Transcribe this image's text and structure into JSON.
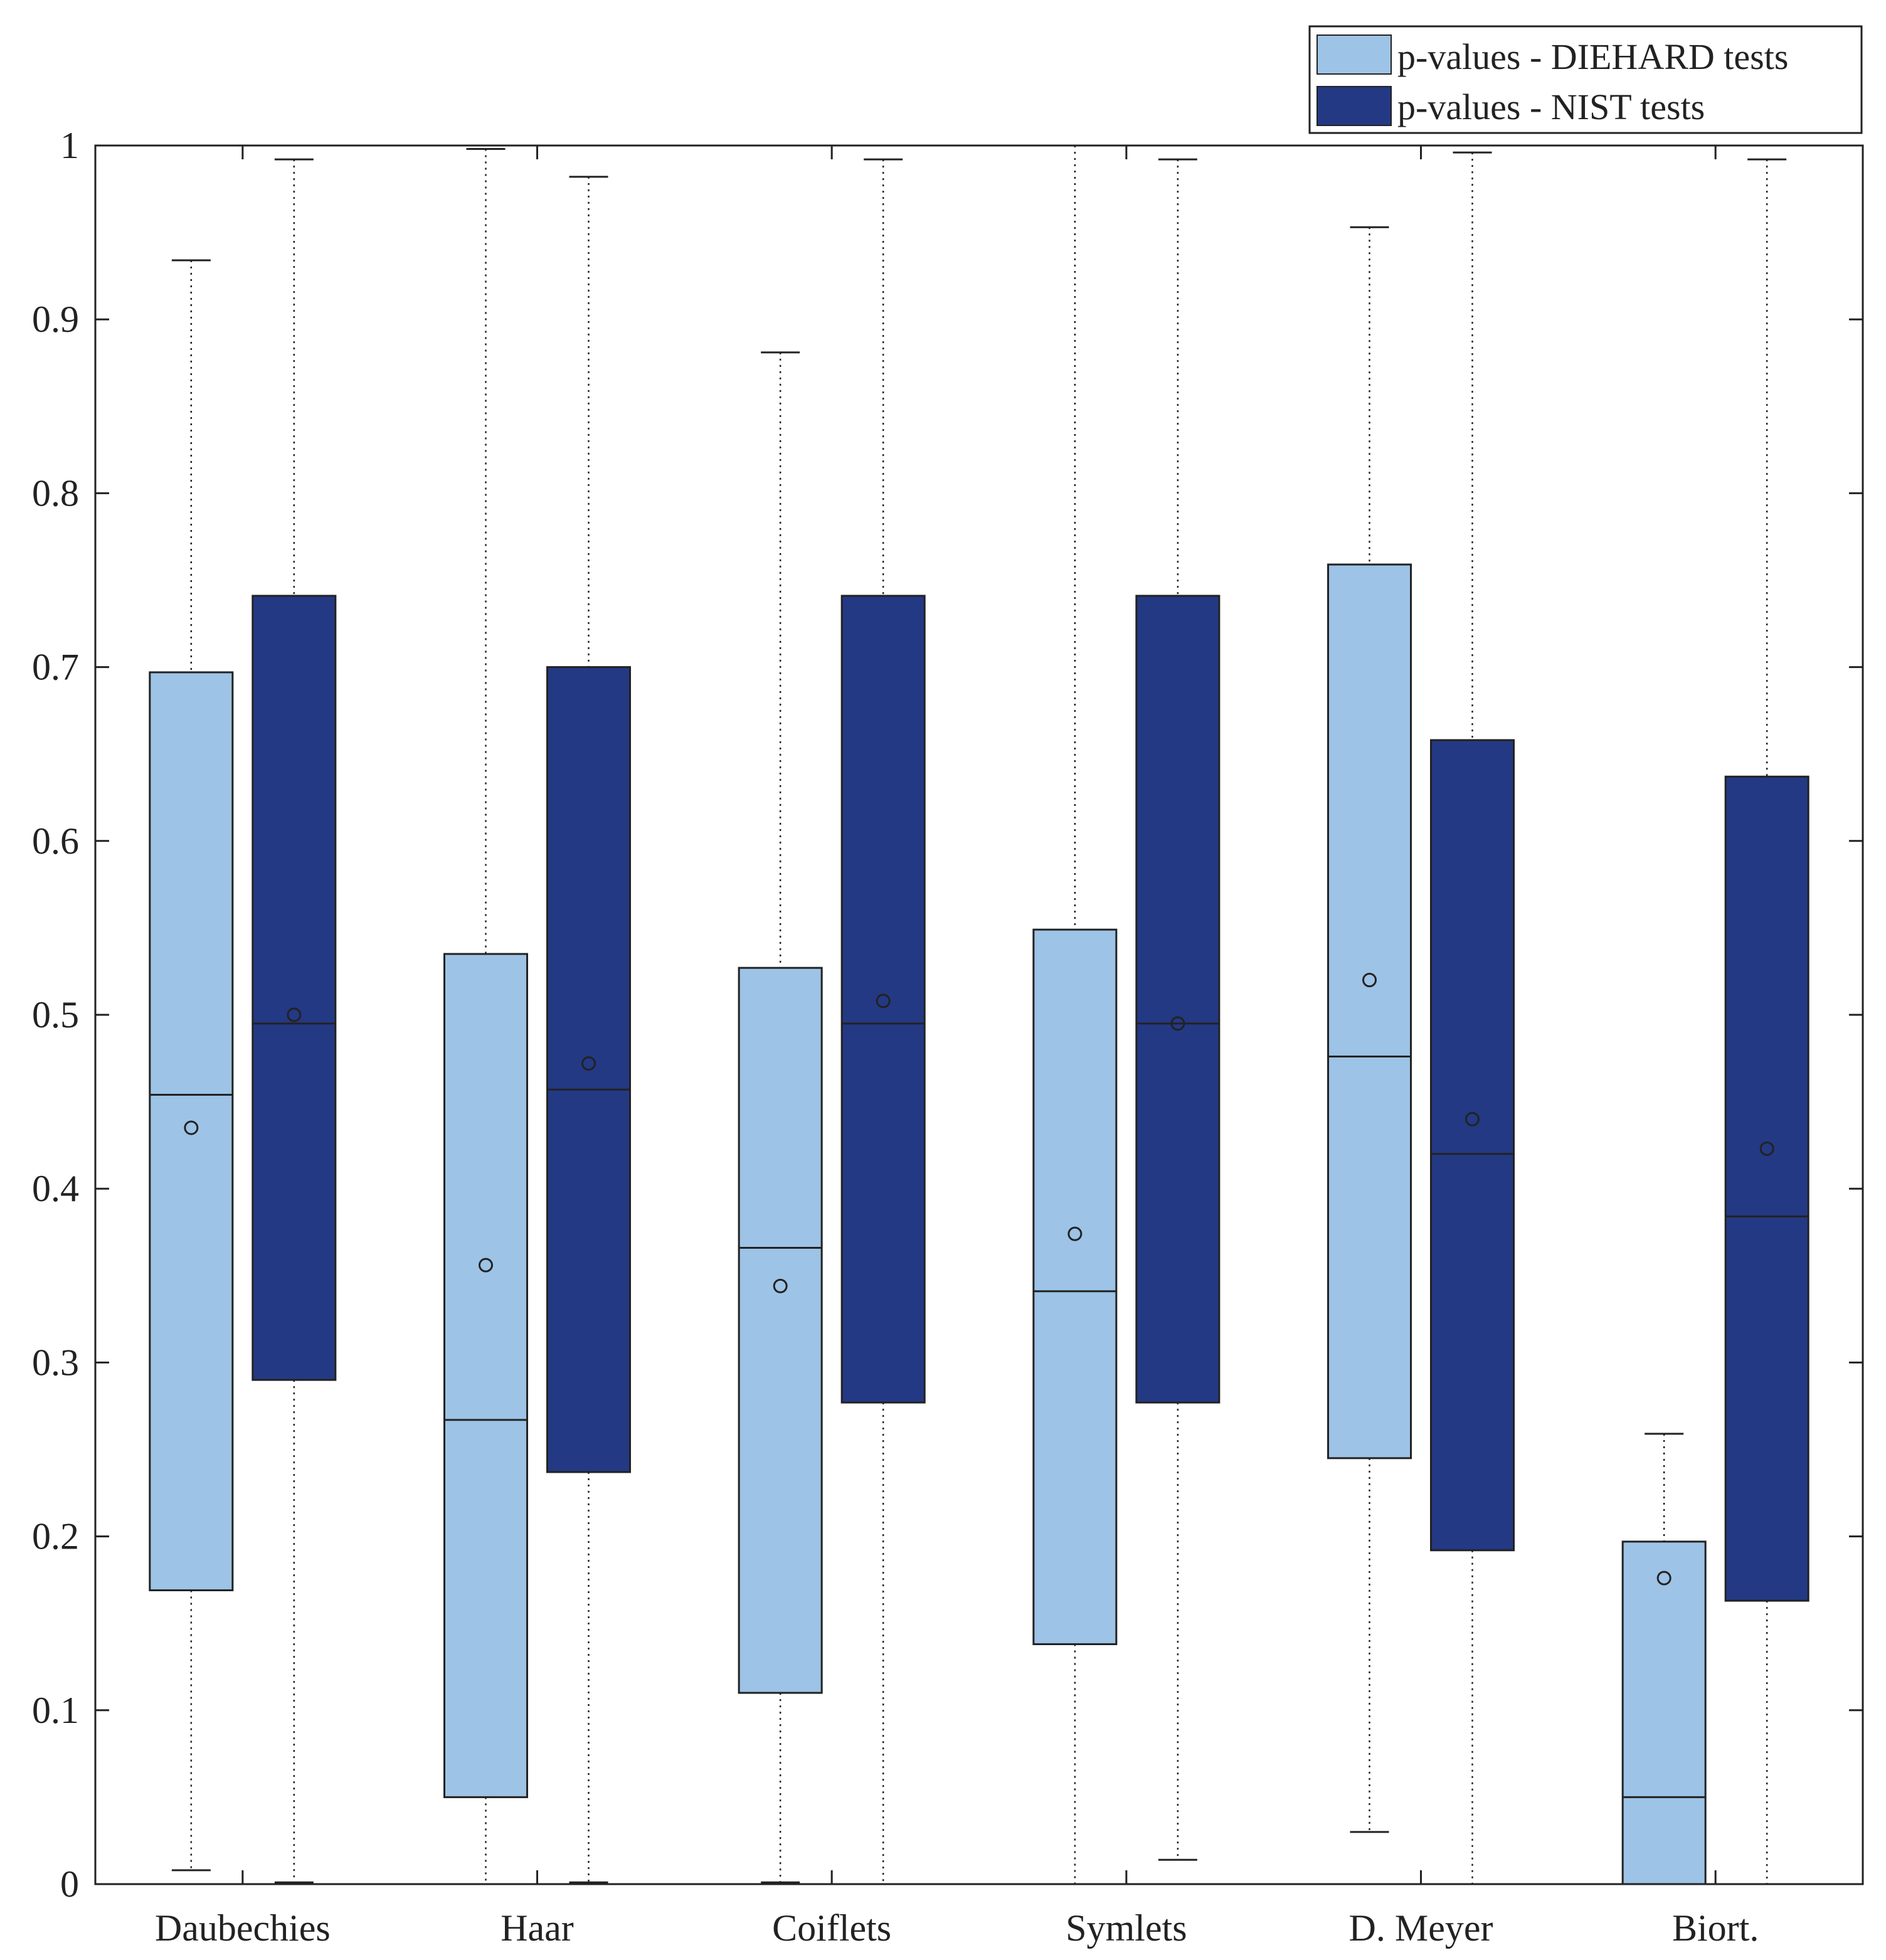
{
  "colors": {
    "diehard": "#9dc3e6",
    "nist": "#243984",
    "axis": "#222222",
    "background": "#ffffff"
  },
  "chart_data": {
    "type": "box",
    "title": "",
    "xlabel": "",
    "ylabel": "",
    "ylim": [
      0,
      1
    ],
    "yticks": [
      0,
      0.1,
      0.2,
      0.3,
      0.4,
      0.5,
      0.6,
      0.7,
      0.8,
      0.9,
      1
    ],
    "ytick_labels": [
      "0",
      "0.1",
      "0.2",
      "0.3",
      "0.4",
      "0.5",
      "0.6",
      "0.7",
      "0.8",
      "0.9",
      "1"
    ],
    "categories": [
      "Daubechies",
      "Haar",
      "Coiflets",
      "Symlets",
      "D. Meyer",
      "Biort."
    ],
    "legend": {
      "position": "top-right",
      "entries": [
        "p-values - DIEHARD tests",
        "p-values - NIST tests"
      ]
    },
    "series": [
      {
        "name": "p-values - DIEHARD tests",
        "boxes": [
          {
            "min": 0.008,
            "q1": 0.169,
            "median": 0.454,
            "q3": 0.697,
            "max": 0.934,
            "mean": 0.435
          },
          {
            "min": 0.0,
            "q1": 0.05,
            "median": 0.267,
            "q3": 0.535,
            "max": 0.998,
            "mean": 0.356
          },
          {
            "min": 0.001,
            "q1": 0.11,
            "median": 0.366,
            "q3": 0.527,
            "max": 0.881,
            "mean": 0.344
          },
          {
            "min": 0.0,
            "q1": 0.138,
            "median": 0.341,
            "q3": 0.549,
            "max": 1.0,
            "mean": 0.374
          },
          {
            "min": 0.03,
            "q1": 0.245,
            "median": 0.476,
            "q3": 0.759,
            "max": 0.953,
            "mean": 0.52
          },
          {
            "min": 0.0,
            "q1": 0.0,
            "median": 0.05,
            "q3": 0.197,
            "max": 0.259,
            "mean": 0.176
          }
        ]
      },
      {
        "name": "p-values - NIST tests",
        "boxes": [
          {
            "min": 0.001,
            "q1": 0.29,
            "median": 0.495,
            "q3": 0.741,
            "max": 0.992,
            "mean": 0.5
          },
          {
            "min": 0.001,
            "q1": 0.237,
            "median": 0.457,
            "q3": 0.7,
            "max": 0.982,
            "mean": 0.472
          },
          {
            "min": 0.0,
            "q1": 0.277,
            "median": 0.495,
            "q3": 0.741,
            "max": 0.992,
            "mean": 0.508
          },
          {
            "min": 0.014,
            "q1": 0.277,
            "median": 0.495,
            "q3": 0.741,
            "max": 0.992,
            "mean": 0.495
          },
          {
            "min": 0.0,
            "q1": 0.192,
            "median": 0.42,
            "q3": 0.658,
            "max": 0.996,
            "mean": 0.44
          },
          {
            "min": 0.0,
            "q1": 0.163,
            "median": 0.384,
            "q3": 0.637,
            "max": 0.992,
            "mean": 0.423
          }
        ]
      }
    ]
  }
}
